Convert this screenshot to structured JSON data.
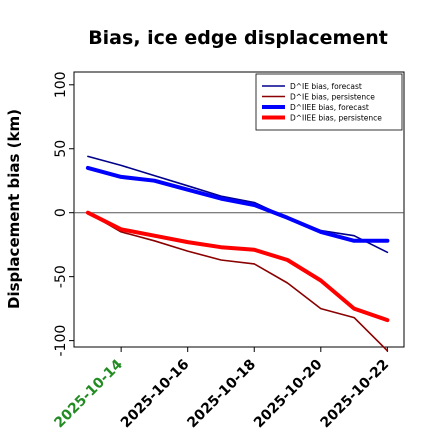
{
  "chart_data": {
    "type": "line",
    "title": "Bias, ice edge displacement",
    "ylabel": "Displacement bias (km)",
    "xlabel": "",
    "ylim": [
      -105,
      110
    ],
    "yticks": [
      100,
      50,
      0,
      -50,
      -100
    ],
    "xlim": [
      "2025-10-12T14:00",
      "2025-10-22T12:00"
    ],
    "xticks": [
      "2025-10-14",
      "2025-10-16",
      "2025-10-18",
      "2025-10-20",
      "2025-10-22"
    ],
    "highlight_xtick": "2025-10-14",
    "highlight_color": "#228B22",
    "zero_line": 0,
    "grid": false,
    "legend_position": "top-right",
    "x": [
      "2025-10-13",
      "2025-10-14",
      "2025-10-15",
      "2025-10-16",
      "2025-10-17",
      "2025-10-18",
      "2025-10-19",
      "2025-10-20",
      "2025-10-21",
      "2025-10-22"
    ],
    "series": [
      {
        "name": "D^IE bias, forecast",
        "color": "#00008B",
        "width": "thin",
        "values": [
          44,
          37,
          29,
          21,
          13,
          8,
          -4,
          -14,
          -18,
          -31
        ]
      },
      {
        "name": "D^IE bias, persistence",
        "color": "#8B0000",
        "width": "thin",
        "values": [
          0,
          -15,
          -22,
          -30,
          -37,
          -40,
          -55,
          -75,
          -82,
          -108
        ]
      },
      {
        "name": "D^IIEE bias, forecast",
        "color": "#0000FF",
        "width": "thick",
        "values": [
          35,
          28,
          25,
          18,
          11,
          6,
          -4,
          -15,
          -22,
          -22
        ]
      },
      {
        "name": "D^IIEE bias, persistence",
        "color": "#FF0000",
        "width": "thick",
        "values": [
          0,
          -13,
          -18,
          -23,
          -27,
          -29,
          -37,
          -53,
          -75,
          -84
        ]
      }
    ]
  }
}
